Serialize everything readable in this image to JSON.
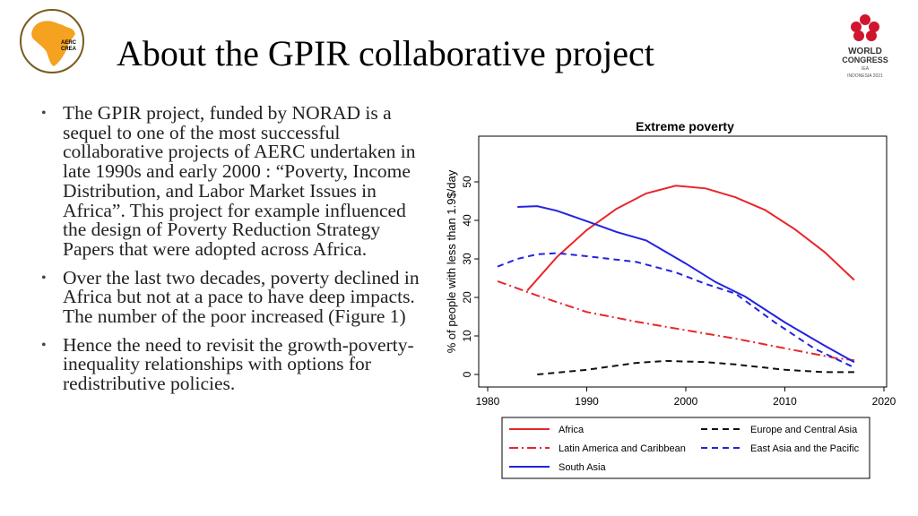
{
  "header": {
    "title": "About the GPIR collaborative project",
    "logo_left_text": [
      "AERC",
      "CREA"
    ],
    "logo_right_text": [
      "WORLD",
      "CONGRESS",
      "IEA",
      "INDONESIA 2021"
    ]
  },
  "bullets": [
    "The GPIR project, funded by NORAD is a sequel to one of the most successful collaborative projects of AERC undertaken in late 1990s and early 2000 : “Poverty, Income Distribution, and Labor Market Issues in Africa”. This project for example influenced the design of Poverty Reduction Strategy Papers that were adopted across Africa.",
    "Over the last two decades, poverty declined in Africa but not at a pace to have deep impacts. The number of the poor increased (Figure 1)",
    "Hence the need to revisit the growth-poverty-inequality relationships with options for redistributive policies."
  ],
  "chart_data": {
    "type": "line",
    "title": "Extreme poverty",
    "xlabel": "",
    "ylabel": "% of people with less than 1.9$/day",
    "xlim": [
      1980,
      2020
    ],
    "ylim": [
      0,
      60
    ],
    "x_ticks": [
      1980,
      1990,
      2000,
      2010,
      2020
    ],
    "y_ticks": [
      0,
      10,
      20,
      30,
      40,
      50
    ],
    "legend_position": "bottom",
    "series": [
      {
        "name": "Africa",
        "color": "#e8262b",
        "dash": "solid",
        "x": [
          1984,
          1987,
          1990,
          1993,
          1996,
          1999,
          2002,
          2005,
          2008,
          2011,
          2014,
          2017
        ],
        "y": [
          21.8,
          30.5,
          37.5,
          43,
          47,
          49,
          48.3,
          46,
          42.7,
          37.7,
          31.8,
          24.5
        ]
      },
      {
        "name": "Europe and Central Asia",
        "color": "#111111",
        "dash": "dashed",
        "x": [
          1985,
          1990,
          1995,
          1998,
          2002,
          2005,
          2010,
          2014,
          2017
        ],
        "y": [
          0,
          1.2,
          3,
          3.5,
          3.2,
          2.6,
          1.2,
          0.6,
          0.6
        ]
      },
      {
        "name": "Latin America and Caribbean",
        "color": "#e8262b",
        "dash": "dashdot",
        "x": [
          1981,
          1985,
          1990,
          1995,
          2000,
          2005,
          2010,
          2015,
          2017
        ],
        "y": [
          24.2,
          20.5,
          16.2,
          13.7,
          11.5,
          9.3,
          6.8,
          4.3,
          3.7
        ]
      },
      {
        "name": "East Asia and the Pacific",
        "color": "#2323e0",
        "dash": "dashed",
        "x": [
          1981,
          1983,
          1985,
          1987,
          1990,
          1995,
          1999,
          2002,
          2005,
          2009,
          2013,
          2017
        ],
        "y": [
          28,
          30,
          31.2,
          31.5,
          30.7,
          29.2,
          26.5,
          23.5,
          21,
          13.5,
          6.7,
          1.8
        ]
      },
      {
        "name": "South Asia",
        "color": "#2323e0",
        "dash": "solid",
        "x": [
          1983,
          1985,
          1987,
          1990,
          1993,
          1996,
          2000,
          2003,
          2006,
          2010,
          2014,
          2017
        ],
        "y": [
          43.5,
          43.7,
          42.5,
          39.8,
          37,
          34.8,
          28.8,
          24,
          20.2,
          13.5,
          7.5,
          3.2
        ]
      }
    ]
  }
}
